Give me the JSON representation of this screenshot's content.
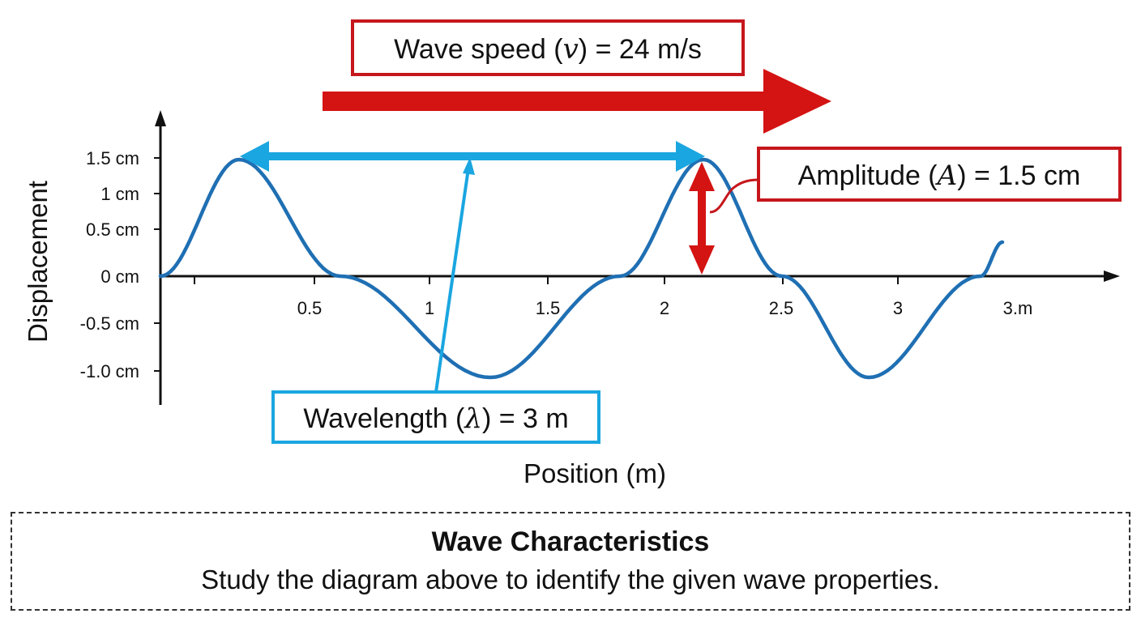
{
  "diagram": {
    "y_label": "Displacement",
    "x_label": "Position (m)",
    "y_ticks": [
      "1.5 cm",
      "1 cm",
      "0.5 cm",
      "0 cm",
      "-0.5 cm",
      "-1.0 cm"
    ],
    "x_ticks": [
      "0.5",
      "1",
      "1.5",
      "2",
      "2.5",
      "3",
      "3.m"
    ],
    "wave_speed_label": {
      "pre": "Wave speed (",
      "sym": "v",
      "post": ") = 24 m/s"
    },
    "amplitude_label": {
      "pre": "Amplitude (",
      "sym": "A",
      "post": ") = 1.5 cm"
    },
    "wavelength_label": {
      "pre": "Wavelength (",
      "sym": "λ",
      "post": ") = 3 m"
    },
    "colors": {
      "wave": "#1f6fb3",
      "speed": "#d41313",
      "wavelength": "#1aa6e0",
      "amplitude": "#d41313"
    }
  },
  "caption": {
    "title": "Wave Characteristics",
    "body": "Study the diagram above to identify the given wave properties."
  }
}
